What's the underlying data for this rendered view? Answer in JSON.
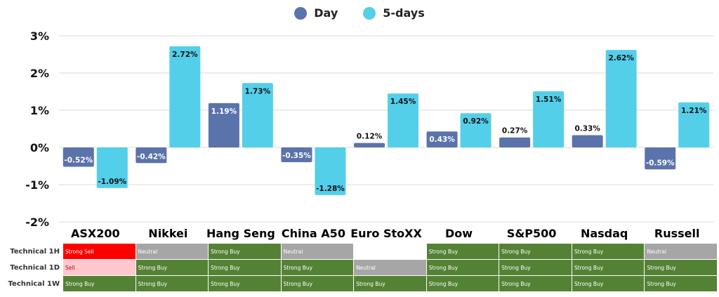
{
  "legend": {
    "day": {
      "label": "Day",
      "color": "#5b73ab"
    },
    "five_days": {
      "label": "5-days",
      "color": "#54cfea"
    }
  },
  "chart_data": {
    "type": "bar",
    "categories": [
      "ASX200",
      "Nikkei",
      "Hang Seng",
      "China A50",
      "Euro StoXX",
      "Dow",
      "S&P500",
      "Nasdaq",
      "Russell"
    ],
    "series": [
      {
        "name": "Day",
        "values": [
          -0.52,
          -0.42,
          1.19,
          -0.35,
          0.12,
          0.43,
          0.27,
          0.33,
          -0.59
        ],
        "labels": [
          "-0.52%",
          "-0.42%",
          "1.19%",
          "-0.35%",
          "0.12%",
          "0.43%",
          "0.27%",
          "0.33%",
          "-0.59%"
        ]
      },
      {
        "name": "5-days",
        "values": [
          -1.09,
          2.72,
          1.73,
          -1.28,
          1.45,
          0.92,
          1.51,
          2.62,
          1.21
        ],
        "labels": [
          "-1.09%",
          "2.72%",
          "1.73%",
          "-1.28%",
          "1.45%",
          "0.92%",
          "1.51%",
          "2.62%",
          "1.21%"
        ]
      }
    ],
    "ylim": [
      -2,
      3
    ],
    "yticks": [
      3,
      2,
      1,
      0,
      -1,
      -2
    ],
    "ytick_labels": [
      "3%",
      "2%",
      "1%",
      "0%",
      "-1%",
      "-2%"
    ],
    "grid": true,
    "legend_position": "top-center"
  },
  "technical": {
    "rows": [
      {
        "label": "Technical 1H",
        "cells": [
          "Strong Sell",
          "Neutral",
          "Strong Buy",
          "Neutral",
          "",
          "Strong Buy",
          "Strong Buy",
          "Strong Buy",
          "Neutral"
        ]
      },
      {
        "label": "Technical 1D",
        "cells": [
          "Sell",
          "Strong Buy",
          "Strong Buy",
          "Strong Buy",
          "Neutral",
          "Strong Buy",
          "Strong Buy",
          "Strong Buy",
          "Strong Buy"
        ]
      },
      {
        "label": "Technical 1W",
        "cells": [
          "Strong Buy",
          "Strong Buy",
          "Strong Buy",
          "Strong Buy",
          "Strong Buy",
          "Strong Buy",
          "Strong Buy",
          "Strong Buy",
          "Strong Buy"
        ]
      }
    ],
    "colors": {
      "Strong Sell": "#ff0000",
      "Sell": "#ffc7ce",
      "Neutral": "#a6a6a6",
      "Strong Buy": "#548235",
      "": "#ffffff"
    }
  }
}
